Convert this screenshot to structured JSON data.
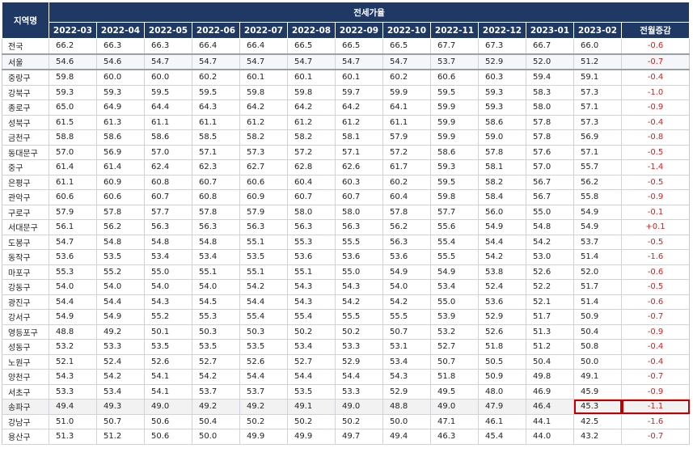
{
  "table": {
    "region_header": "지역명",
    "group_header": "전세가율",
    "months": [
      "2022-03",
      "2022-04",
      "2022-05",
      "2022-06",
      "2022-07",
      "2022-08",
      "2022-09",
      "2022-10",
      "2022-11",
      "2022-12",
      "2023-01",
      "2023-02"
    ],
    "change_header": "전월증감",
    "rows": [
      {
        "region": "전국",
        "values": [
          "66.2",
          "66.3",
          "66.3",
          "66.4",
          "66.4",
          "66.5",
          "66.5",
          "66.5",
          "67.7",
          "67.3",
          "66.7",
          "66.0"
        ],
        "change": "-0.6"
      },
      {
        "region": "서울",
        "values": [
          "54.6",
          "54.6",
          "54.7",
          "54.7",
          "54.7",
          "54.7",
          "54.7",
          "54.7",
          "53.7",
          "52.9",
          "52.0",
          "51.2"
        ],
        "change": "-0.7"
      },
      {
        "region": "중랑구",
        "values": [
          "59.8",
          "60.0",
          "60.0",
          "60.2",
          "60.1",
          "60.1",
          "60.1",
          "60.2",
          "60.6",
          "60.3",
          "59.4",
          "59.1"
        ],
        "change": "-0.4"
      },
      {
        "region": "강북구",
        "values": [
          "59.3",
          "59.3",
          "59.5",
          "59.5",
          "59.8",
          "59.8",
          "59.7",
          "59.9",
          "59.5",
          "59.3",
          "58.3",
          "57.3"
        ],
        "change": "-1.0"
      },
      {
        "region": "종로구",
        "values": [
          "65.0",
          "64.9",
          "64.4",
          "64.3",
          "64.2",
          "64.2",
          "64.2",
          "64.1",
          "59.9",
          "59.3",
          "58.0",
          "57.1"
        ],
        "change": "-0.9"
      },
      {
        "region": "성북구",
        "values": [
          "61.5",
          "61.3",
          "61.1",
          "61.1",
          "61.2",
          "61.2",
          "61.2",
          "61.1",
          "59.9",
          "58.6",
          "57.8",
          "57.3"
        ],
        "change": "-0.4"
      },
      {
        "region": "금천구",
        "values": [
          "58.8",
          "58.6",
          "58.6",
          "58.5",
          "58.2",
          "58.2",
          "58.1",
          "57.9",
          "59.9",
          "59.0",
          "57.8",
          "56.9"
        ],
        "change": "-0.8"
      },
      {
        "region": "동대문구",
        "values": [
          "57.0",
          "56.9",
          "57.0",
          "57.1",
          "57.3",
          "57.2",
          "57.1",
          "57.2",
          "58.6",
          "57.8",
          "57.6",
          "57.1"
        ],
        "change": "-0.5"
      },
      {
        "region": "중구",
        "values": [
          "61.4",
          "61.4",
          "62.4",
          "62.3",
          "62.7",
          "62.8",
          "62.6",
          "61.7",
          "59.3",
          "58.1",
          "57.0",
          "55.7"
        ],
        "change": "-1.4"
      },
      {
        "region": "은평구",
        "values": [
          "61.1",
          "60.9",
          "60.8",
          "60.7",
          "60.6",
          "60.4",
          "60.3",
          "60.2",
          "59.5",
          "58.2",
          "56.7",
          "56.2"
        ],
        "change": "-0.5"
      },
      {
        "region": "관악구",
        "values": [
          "60.6",
          "60.6",
          "60.7",
          "60.8",
          "60.9",
          "60.7",
          "60.7",
          "60.4",
          "59.8",
          "58.4",
          "56.7",
          "55.8"
        ],
        "change": "-0.9"
      },
      {
        "region": "구로구",
        "values": [
          "57.9",
          "57.8",
          "57.7",
          "57.8",
          "57.9",
          "58.0",
          "58.0",
          "57.8",
          "57.7",
          "56.0",
          "55.0",
          "54.9"
        ],
        "change": "-0.1"
      },
      {
        "region": "서대문구",
        "values": [
          "56.1",
          "56.2",
          "56.3",
          "56.3",
          "56.3",
          "56.3",
          "56.3",
          "56.2",
          "55.6",
          "54.9",
          "54.8",
          "54.9"
        ],
        "change": "+0.1"
      },
      {
        "region": "도봉구",
        "values": [
          "54.7",
          "54.8",
          "54.8",
          "54.8",
          "55.1",
          "55.3",
          "55.5",
          "56.3",
          "55.4",
          "54.4",
          "54.2",
          "53.7"
        ],
        "change": "-0.5"
      },
      {
        "region": "동작구",
        "values": [
          "53.6",
          "53.5",
          "53.4",
          "53.4",
          "53.5",
          "53.6",
          "53.6",
          "53.6",
          "55.5",
          "54.2",
          "53.0",
          "51.4"
        ],
        "change": "-1.6"
      },
      {
        "region": "마포구",
        "values": [
          "55.3",
          "55.2",
          "55.0",
          "55.1",
          "55.1",
          "55.1",
          "55.0",
          "54.9",
          "54.9",
          "53.8",
          "52.6",
          "52.0"
        ],
        "change": "-0.6"
      },
      {
        "region": "강동구",
        "values": [
          "54.0",
          "54.0",
          "54.0",
          "54.0",
          "54.2",
          "54.3",
          "54.3",
          "54.0",
          "53.4",
          "52.4",
          "52.2",
          "51.7"
        ],
        "change": "-0.5"
      },
      {
        "region": "광진구",
        "values": [
          "54.4",
          "54.4",
          "54.3",
          "54.5",
          "54.4",
          "54.3",
          "54.2",
          "54.2",
          "55.0",
          "53.6",
          "52.1",
          "51.4"
        ],
        "change": "-0.6"
      },
      {
        "region": "강서구",
        "values": [
          "54.9",
          "54.9",
          "55.2",
          "55.3",
          "55.4",
          "55.4",
          "55.5",
          "55.5",
          "53.9",
          "52.9",
          "51.7",
          "50.9"
        ],
        "change": "-0.7"
      },
      {
        "region": "영등포구",
        "values": [
          "48.8",
          "49.2",
          "50.1",
          "50.3",
          "50.3",
          "50.2",
          "50.2",
          "50.7",
          "53.2",
          "52.6",
          "51.3",
          "50.4"
        ],
        "change": "-0.9"
      },
      {
        "region": "성동구",
        "values": [
          "53.2",
          "53.3",
          "53.5",
          "53.5",
          "53.5",
          "53.4",
          "53.3",
          "53.1",
          "52.7",
          "51.8",
          "51.2",
          "50.8"
        ],
        "change": "-0.4"
      },
      {
        "region": "노원구",
        "values": [
          "52.1",
          "52.4",
          "52.6",
          "52.7",
          "52.6",
          "52.7",
          "52.9",
          "53.4",
          "50.7",
          "50.5",
          "50.4",
          "50.0"
        ],
        "change": "-0.4"
      },
      {
        "region": "양천구",
        "values": [
          "54.3",
          "54.2",
          "54.1",
          "54.2",
          "54.4",
          "54.4",
          "54.4",
          "54.3",
          "51.8",
          "50.9",
          "49.8",
          "49.1"
        ],
        "change": "-0.7"
      },
      {
        "region": "서초구",
        "values": [
          "53.3",
          "53.4",
          "54.1",
          "53.7",
          "53.7",
          "53.5",
          "53.3",
          "52.9",
          "49.5",
          "48.0",
          "46.9",
          "45.9"
        ],
        "change": "-0.9"
      },
      {
        "region": "송파구",
        "values": [
          "49.4",
          "49.3",
          "49.0",
          "49.2",
          "49.2",
          "49.1",
          "49.0",
          "48.8",
          "49.0",
          "47.9",
          "46.4",
          "45.3"
        ],
        "change": "-1.1"
      },
      {
        "region": "강남구",
        "values": [
          "51.0",
          "50.7",
          "50.6",
          "50.4",
          "50.2",
          "50.2",
          "50.2",
          "50.0",
          "47.1",
          "46.1",
          "44.1",
          "42.5"
        ],
        "change": "-1.6"
      },
      {
        "region": "용산구",
        "values": [
          "51.3",
          "51.2",
          "50.6",
          "50.0",
          "49.9",
          "49.9",
          "49.7",
          "49.4",
          "46.3",
          "45.4",
          "44.0",
          "43.2"
        ],
        "change": "-0.7"
      }
    ]
  },
  "highlight_region": "송파구",
  "colors": {
    "header_bg": "#1f3864",
    "header_text": "#ffffff",
    "change_text": "#e0191b",
    "highlight_box": "#c00000",
    "highlight_row_bg": "#f2f2f2"
  }
}
